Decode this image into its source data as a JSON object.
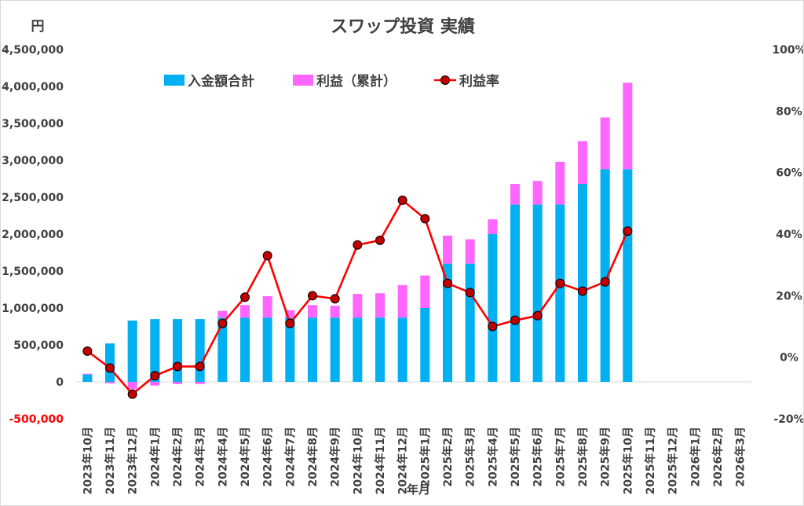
{
  "chart_data": {
    "type": "bar",
    "stacked": true,
    "title": "スワップ投資 実績",
    "ylabel": "円",
    "xlabel": "年月",
    "categories": [
      "2023年10月",
      "2023年11月",
      "2023年12月",
      "2024年1月",
      "2024年2月",
      "2024年3月",
      "2024年4月",
      "2024年5月",
      "2024年6月",
      "2024年7月",
      "2024年8月",
      "2024年9月",
      "2024年10月",
      "2024年11月",
      "2024年12月",
      "2025年1月",
      "2025年2月",
      "2025年3月",
      "2025年4月",
      "2025年5月",
      "2025年6月",
      "2025年7月",
      "2025年8月",
      "2025年9月",
      "2025年10月",
      "2025年11月",
      "2025年12月",
      "2026年1月",
      "2026年2月",
      "2026年3月"
    ],
    "ylim": [
      -500000,
      4500000
    ],
    "y2lim": [
      -0.2,
      1.0
    ],
    "yticks": [
      {
        "value": -500000,
        "label": "-500,000",
        "color": "#ff0000"
      },
      {
        "value": 0,
        "label": "0"
      },
      {
        "value": 500000,
        "label": "500,000"
      },
      {
        "value": 1000000,
        "label": "1,000,000"
      },
      {
        "value": 1500000,
        "label": "1,500,000"
      },
      {
        "value": 2000000,
        "label": "2,000,000"
      },
      {
        "value": 2500000,
        "label": "2,500,000"
      },
      {
        "value": 3000000,
        "label": "3,000,000"
      },
      {
        "value": 3500000,
        "label": "3,500,000"
      },
      {
        "value": 4000000,
        "label": "4,000,000"
      },
      {
        "value": 4500000,
        "label": "4,500,000"
      }
    ],
    "y2ticks": [
      {
        "value": -0.2,
        "label": "-20%"
      },
      {
        "value": 0,
        "label": "0%"
      },
      {
        "value": 0.2,
        "label": "20%"
      },
      {
        "value": 0.4,
        "label": "40%"
      },
      {
        "value": 0.6,
        "label": "60%"
      },
      {
        "value": 0.8,
        "label": "80%"
      },
      {
        "value": 1.0,
        "label": "100%"
      }
    ],
    "series": [
      {
        "name": "入金額合計",
        "type": "bar",
        "color": "#00b0f0",
        "values": [
          100000,
          520000,
          830000,
          850000,
          850000,
          850000,
          870000,
          870000,
          870000,
          870000,
          870000,
          870000,
          870000,
          870000,
          870000,
          1000000,
          1600000,
          1600000,
          2000000,
          2400000,
          2400000,
          2400000,
          2680000,
          2880000,
          2880000,
          null,
          null,
          null,
          null,
          null
        ]
      },
      {
        "name": "利益（累計）",
        "type": "bar",
        "color": "#ff66ff",
        "values": [
          10000,
          -20000,
          -100000,
          -50000,
          -30000,
          -30000,
          90000,
          170000,
          290000,
          100000,
          170000,
          160000,
          320000,
          330000,
          440000,
          440000,
          380000,
          330000,
          200000,
          280000,
          320000,
          580000,
          580000,
          700000,
          1170000,
          null,
          null,
          null,
          null,
          null
        ]
      },
      {
        "name": "利益率",
        "type": "line",
        "axis": "right",
        "color": "#ff0000",
        "marker_color": "#c00000",
        "values": [
          0.02,
          -0.035,
          -0.12,
          -0.06,
          -0.03,
          -0.03,
          0.11,
          0.195,
          0.33,
          0.11,
          0.2,
          0.19,
          0.365,
          0.38,
          0.51,
          0.45,
          0.24,
          0.21,
          0.1,
          0.12,
          0.135,
          0.24,
          0.215,
          0.245,
          0.41,
          null,
          null,
          null,
          null,
          null
        ]
      }
    ],
    "legend": {
      "position": "top-left-inside"
    }
  }
}
